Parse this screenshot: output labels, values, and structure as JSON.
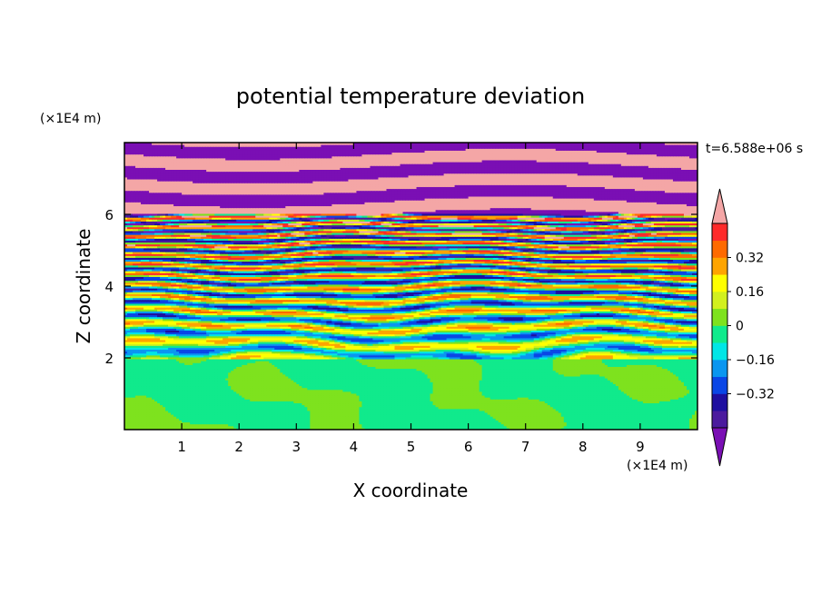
{
  "chart_data": {
    "type": "heatmap",
    "title": "potential temperature deviation",
    "xlabel": "X coordinate",
    "ylabel": "Z coordinate",
    "x_unit": "(×1E4 m)",
    "y_unit": "(×1E4 m)",
    "time_label": "t=6.588e+06 s",
    "xlim": [
      0,
      10
    ],
    "ylim": [
      0,
      8
    ],
    "x_ticks": [
      1,
      2,
      3,
      4,
      5,
      6,
      7,
      8,
      9
    ],
    "x_tick_labels": [
      "1",
      "2",
      "3",
      "4",
      "5",
      "6",
      "7",
      "8",
      "9"
    ],
    "y_ticks": [
      2,
      4,
      6
    ],
    "y_tick_labels": [
      "2",
      "4",
      "6"
    ],
    "colorbar": {
      "levels": [
        -0.48,
        -0.4,
        -0.32,
        -0.24,
        -0.16,
        -0.08,
        0,
        0.08,
        0.16,
        0.24,
        0.32,
        0.4,
        0.48
      ],
      "tick_values": [
        0.32,
        0.16,
        0,
        -0.16,
        -0.32
      ],
      "tick_labels": [
        "0.32",
        "0.16",
        "0",
        "−0.16",
        "−0.32"
      ],
      "colors_low_to_high": [
        "#4b1a9e",
        "#1e0fa0",
        "#0a46e6",
        "#0a96f0",
        "#00e6e6",
        "#10ea8c",
        "#7ee21e",
        "#d2f01e",
        "#ffff00",
        "#ffa400",
        "#ff6a00",
        "#ff2a2a"
      ],
      "under_color": "#7a0fb4",
      "over_color": "#f4a6a6",
      "extend": "both"
    },
    "field_description": {
      "lower_layer_z_range": [
        0,
        2
      ],
      "lower_layer_colors": [
        "#10ea8c",
        "#7ee21e"
      ],
      "banded_layer_z_range": [
        2,
        8
      ]
    }
  }
}
